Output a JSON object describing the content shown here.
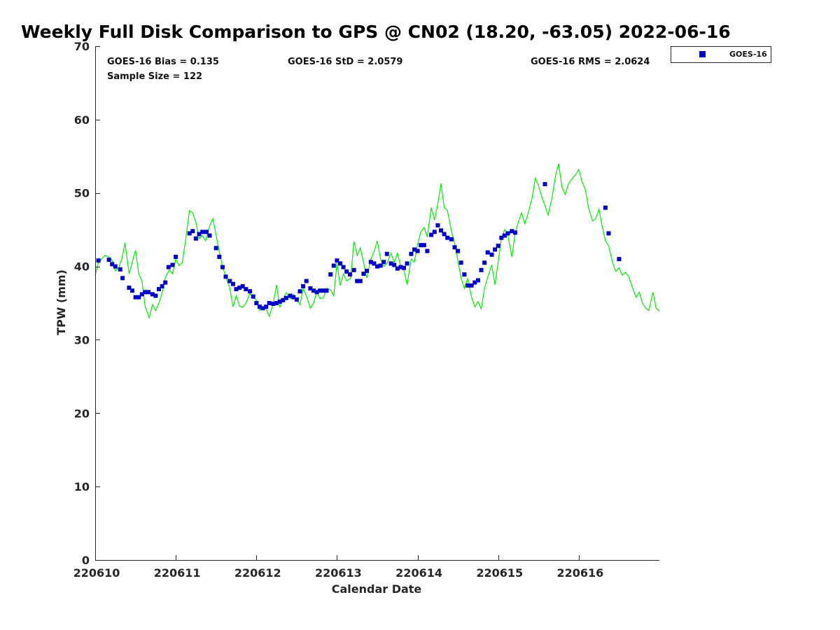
{
  "chart_data": {
    "type": "scatter",
    "title": "Weekly Full Disk Comparison to GPS @ CN02 (18.20, -63.05) 2022-06-16",
    "xlabel": "Calendar Date",
    "ylabel": "TPW (mm)",
    "xlim": [
      0,
      7
    ],
    "ylim": [
      0,
      70
    ],
    "x_ticks": [
      {
        "value": 0,
        "label": "220610"
      },
      {
        "value": 1,
        "label": "220611"
      },
      {
        "value": 2,
        "label": "220612"
      },
      {
        "value": 3,
        "label": "220613"
      },
      {
        "value": 4,
        "label": "220614"
      },
      {
        "value": 5,
        "label": "220615"
      },
      {
        "value": 6,
        "label": "220616"
      }
    ],
    "y_ticks": [
      {
        "value": 0,
        "label": "0"
      },
      {
        "value": 10,
        "label": "10"
      },
      {
        "value": 20,
        "label": "20"
      },
      {
        "value": 30,
        "label": "30"
      },
      {
        "value": 40,
        "label": "40"
      },
      {
        "value": 50,
        "label": "50"
      },
      {
        "value": 60,
        "label": "60"
      },
      {
        "value": 70,
        "label": "70"
      }
    ],
    "stats": {
      "bias": "GOES-16 Bias = 0.135",
      "sample": "Sample Size = 122",
      "std": "GOES-16 StD = 2.0579",
      "rms": "GOES-16 RMS = 2.0624"
    },
    "legend": [
      {
        "name": "GOES-16",
        "color": "#0000cc",
        "marker": "square"
      }
    ],
    "series": [
      {
        "name": "GOES-16",
        "kind": "scatter",
        "color": "#0000cc",
        "points": [
          [
            0.04,
            40.8
          ],
          [
            0.17,
            40.9
          ],
          [
            0.21,
            40.3
          ],
          [
            0.25,
            40.0
          ],
          [
            0.31,
            39.6
          ],
          [
            0.34,
            38.4
          ],
          [
            0.42,
            37.1
          ],
          [
            0.46,
            36.7
          ],
          [
            0.5,
            35.8
          ],
          [
            0.54,
            35.8
          ],
          [
            0.58,
            36.2
          ],
          [
            0.62,
            36.5
          ],
          [
            0.66,
            36.5
          ],
          [
            0.71,
            36.2
          ],
          [
            0.75,
            36.0
          ],
          [
            0.79,
            36.9
          ],
          [
            0.83,
            37.3
          ],
          [
            0.87,
            37.8
          ],
          [
            0.91,
            39.9
          ],
          [
            0.96,
            40.2
          ],
          [
            1.0,
            41.3
          ],
          [
            1.17,
            44.5
          ],
          [
            1.21,
            44.8
          ],
          [
            1.25,
            43.8
          ],
          [
            1.29,
            44.4
          ],
          [
            1.33,
            44.7
          ],
          [
            1.38,
            44.7
          ],
          [
            1.42,
            44.2
          ],
          [
            1.5,
            42.5
          ],
          [
            1.54,
            41.3
          ],
          [
            1.58,
            39.9
          ],
          [
            1.62,
            38.6
          ],
          [
            1.67,
            38.0
          ],
          [
            1.71,
            37.6
          ],
          [
            1.75,
            36.9
          ],
          [
            1.79,
            37.1
          ],
          [
            1.83,
            37.3
          ],
          [
            1.87,
            36.9
          ],
          [
            1.92,
            36.6
          ],
          [
            1.96,
            35.9
          ],
          [
            2.0,
            35.0
          ],
          [
            2.04,
            34.5
          ],
          [
            2.08,
            34.3
          ],
          [
            2.12,
            34.5
          ],
          [
            2.16,
            35.0
          ],
          [
            2.21,
            34.9
          ],
          [
            2.25,
            35.0
          ],
          [
            2.29,
            35.2
          ],
          [
            2.33,
            35.4
          ],
          [
            2.37,
            35.7
          ],
          [
            2.42,
            36.0
          ],
          [
            2.46,
            35.8
          ],
          [
            2.5,
            35.5
          ],
          [
            2.54,
            36.6
          ],
          [
            2.58,
            37.3
          ],
          [
            2.62,
            38.0
          ],
          [
            2.67,
            37.0
          ],
          [
            2.71,
            36.7
          ],
          [
            2.75,
            36.5
          ],
          [
            2.79,
            36.7
          ],
          [
            2.83,
            36.7
          ],
          [
            2.87,
            36.7
          ],
          [
            2.92,
            38.9
          ],
          [
            2.96,
            40.1
          ],
          [
            3.0,
            40.8
          ],
          [
            3.04,
            40.4
          ],
          [
            3.08,
            39.9
          ],
          [
            3.12,
            39.3
          ],
          [
            3.16,
            38.9
          ],
          [
            3.21,
            39.5
          ],
          [
            3.25,
            38.0
          ],
          [
            3.29,
            38.0
          ],
          [
            3.33,
            39.0
          ],
          [
            3.37,
            39.4
          ],
          [
            3.42,
            40.6
          ],
          [
            3.46,
            40.4
          ],
          [
            3.5,
            40.0
          ],
          [
            3.54,
            40.1
          ],
          [
            3.58,
            40.6
          ],
          [
            3.62,
            41.7
          ],
          [
            3.67,
            40.4
          ],
          [
            3.71,
            40.2
          ],
          [
            3.75,
            39.7
          ],
          [
            3.79,
            39.9
          ],
          [
            3.83,
            39.8
          ],
          [
            3.87,
            40.4
          ],
          [
            3.92,
            41.7
          ],
          [
            3.96,
            42.3
          ],
          [
            4.0,
            42.1
          ],
          [
            4.04,
            42.9
          ],
          [
            4.08,
            42.9
          ],
          [
            4.12,
            42.1
          ],
          [
            4.17,
            44.3
          ],
          [
            4.21,
            44.7
          ],
          [
            4.25,
            45.6
          ],
          [
            4.29,
            44.9
          ],
          [
            4.33,
            44.4
          ],
          [
            4.37,
            43.9
          ],
          [
            4.42,
            43.7
          ],
          [
            4.46,
            42.6
          ],
          [
            4.5,
            42.1
          ],
          [
            4.54,
            40.5
          ],
          [
            4.58,
            38.9
          ],
          [
            4.62,
            37.4
          ],
          [
            4.67,
            37.4
          ],
          [
            4.71,
            37.8
          ],
          [
            4.75,
            38.1
          ],
          [
            4.79,
            39.5
          ],
          [
            4.83,
            40.5
          ],
          [
            4.87,
            41.9
          ],
          [
            4.92,
            41.6
          ],
          [
            4.96,
            42.3
          ],
          [
            5.0,
            42.8
          ],
          [
            5.04,
            43.9
          ],
          [
            5.08,
            44.2
          ],
          [
            5.12,
            44.5
          ],
          [
            5.17,
            44.8
          ],
          [
            5.21,
            44.6
          ],
          [
            5.58,
            51.2
          ],
          [
            6.33,
            48.0
          ],
          [
            6.37,
            44.5
          ],
          [
            6.5,
            41.0
          ]
        ]
      },
      {
        "name": "GPS",
        "kind": "line",
        "color": "#00ee00",
        "points": [
          [
            0.0,
            38.8
          ],
          [
            0.04,
            40.5
          ],
          [
            0.08,
            41.0
          ],
          [
            0.12,
            41.5
          ],
          [
            0.17,
            41.3
          ],
          [
            0.21,
            40.8
          ],
          [
            0.25,
            39.4
          ],
          [
            0.29,
            39.8
          ],
          [
            0.33,
            41.0
          ],
          [
            0.37,
            43.2
          ],
          [
            0.42,
            39.0
          ],
          [
            0.46,
            40.6
          ],
          [
            0.5,
            42.2
          ],
          [
            0.54,
            39.0
          ],
          [
            0.58,
            38.0
          ],
          [
            0.62,
            34.5
          ],
          [
            0.67,
            33.0
          ],
          [
            0.71,
            34.8
          ],
          [
            0.75,
            34.0
          ],
          [
            0.79,
            35.0
          ],
          [
            0.83,
            36.4
          ],
          [
            0.87,
            38.5
          ],
          [
            0.92,
            39.5
          ],
          [
            0.96,
            39.0
          ],
          [
            1.0,
            41.0
          ],
          [
            1.04,
            40.1
          ],
          [
            1.08,
            40.5
          ],
          [
            1.12,
            43.5
          ],
          [
            1.17,
            47.6
          ],
          [
            1.21,
            47.3
          ],
          [
            1.25,
            46.0
          ],
          [
            1.29,
            43.8
          ],
          [
            1.33,
            44.2
          ],
          [
            1.37,
            43.5
          ],
          [
            1.42,
            45.5
          ],
          [
            1.46,
            46.5
          ],
          [
            1.5,
            44.3
          ],
          [
            1.54,
            42.0
          ],
          [
            1.58,
            40.0
          ],
          [
            1.62,
            38.6
          ],
          [
            1.67,
            37.0
          ],
          [
            1.71,
            34.5
          ],
          [
            1.75,
            36.0
          ],
          [
            1.79,
            34.6
          ],
          [
            1.83,
            34.4
          ],
          [
            1.87,
            35.0
          ],
          [
            1.92,
            36.3
          ],
          [
            1.96,
            35.8
          ],
          [
            2.0,
            35.4
          ],
          [
            2.04,
            34.0
          ],
          [
            2.08,
            34.5
          ],
          [
            2.12,
            34.2
          ],
          [
            2.16,
            33.2
          ],
          [
            2.21,
            35.0
          ],
          [
            2.25,
            37.5
          ],
          [
            2.29,
            34.4
          ],
          [
            2.33,
            35.6
          ],
          [
            2.37,
            36.4
          ],
          [
            2.42,
            35.6
          ],
          [
            2.46,
            36.2
          ],
          [
            2.5,
            35.5
          ],
          [
            2.54,
            34.8
          ],
          [
            2.58,
            37.0
          ],
          [
            2.62,
            36.0
          ],
          [
            2.67,
            34.3
          ],
          [
            2.71,
            35.0
          ],
          [
            2.75,
            36.5
          ],
          [
            2.79,
            35.6
          ],
          [
            2.83,
            35.7
          ],
          [
            2.87,
            37.0
          ],
          [
            2.92,
            36.8
          ],
          [
            2.96,
            36.0
          ],
          [
            3.0,
            40.5
          ],
          [
            3.04,
            37.4
          ],
          [
            3.08,
            39.0
          ],
          [
            3.12,
            38.0
          ],
          [
            3.17,
            38.4
          ],
          [
            3.21,
            43.4
          ],
          [
            3.25,
            41.5
          ],
          [
            3.29,
            42.5
          ],
          [
            3.33,
            40.5
          ],
          [
            3.37,
            38.4
          ],
          [
            3.42,
            41.0
          ],
          [
            3.46,
            42.0
          ],
          [
            3.5,
            43.5
          ],
          [
            3.54,
            41.0
          ],
          [
            3.58,
            40.0
          ],
          [
            3.62,
            40.4
          ],
          [
            3.67,
            41.8
          ],
          [
            3.71,
            40.5
          ],
          [
            3.75,
            41.8
          ],
          [
            3.79,
            40.0
          ],
          [
            3.83,
            39.5
          ],
          [
            3.87,
            37.5
          ],
          [
            3.92,
            41.0
          ],
          [
            3.96,
            40.6
          ],
          [
            4.0,
            43.0
          ],
          [
            4.04,
            44.7
          ],
          [
            4.08,
            45.3
          ],
          [
            4.12,
            44.0
          ],
          [
            4.17,
            48.0
          ],
          [
            4.21,
            46.3
          ],
          [
            4.25,
            48.5
          ],
          [
            4.29,
            51.3
          ],
          [
            4.33,
            48.0
          ],
          [
            4.37,
            47.6
          ],
          [
            4.42,
            44.8
          ],
          [
            4.46,
            43.2
          ],
          [
            4.5,
            40.8
          ],
          [
            4.54,
            38.4
          ],
          [
            4.58,
            37.0
          ],
          [
            4.62,
            38.3
          ],
          [
            4.67,
            35.8
          ],
          [
            4.71,
            34.5
          ],
          [
            4.75,
            35.2
          ],
          [
            4.79,
            34.2
          ],
          [
            4.83,
            37.0
          ],
          [
            4.87,
            38.5
          ],
          [
            4.92,
            40.2
          ],
          [
            4.96,
            37.5
          ],
          [
            5.0,
            40.6
          ],
          [
            5.04,
            43.8
          ],
          [
            5.08,
            45.0
          ],
          [
            5.12,
            44.2
          ],
          [
            5.17,
            41.3
          ],
          [
            5.21,
            44.5
          ],
          [
            5.25,
            46.0
          ],
          [
            5.29,
            47.3
          ],
          [
            5.33,
            45.8
          ],
          [
            5.38,
            47.6
          ],
          [
            5.42,
            49.3
          ],
          [
            5.46,
            52.0
          ],
          [
            5.5,
            51.0
          ],
          [
            5.54,
            49.5
          ],
          [
            5.58,
            48.3
          ],
          [
            5.62,
            47.0
          ],
          [
            5.67,
            49.5
          ],
          [
            5.71,
            52.3
          ],
          [
            5.75,
            54.0
          ],
          [
            5.79,
            50.8
          ],
          [
            5.83,
            49.8
          ],
          [
            5.87,
            51.2
          ],
          [
            5.92,
            52.0
          ],
          [
            5.96,
            52.5
          ],
          [
            6.0,
            53.2
          ],
          [
            6.04,
            51.5
          ],
          [
            6.08,
            50.5
          ],
          [
            6.12,
            48.0
          ],
          [
            6.17,
            46.2
          ],
          [
            6.21,
            46.5
          ],
          [
            6.25,
            47.8
          ],
          [
            6.29,
            45.5
          ],
          [
            6.33,
            43.5
          ],
          [
            6.37,
            42.8
          ],
          [
            6.42,
            40.5
          ],
          [
            6.46,
            39.3
          ],
          [
            6.5,
            39.8
          ],
          [
            6.54,
            38.8
          ],
          [
            6.58,
            39.2
          ],
          [
            6.62,
            38.6
          ],
          [
            6.67,
            37.0
          ],
          [
            6.71,
            35.8
          ],
          [
            6.75,
            36.5
          ],
          [
            6.79,
            35.0
          ],
          [
            6.83,
            34.3
          ],
          [
            6.87,
            34.0
          ],
          [
            6.92,
            36.5
          ],
          [
            6.96,
            34.3
          ],
          [
            7.0,
            33.9
          ]
        ]
      }
    ]
  }
}
